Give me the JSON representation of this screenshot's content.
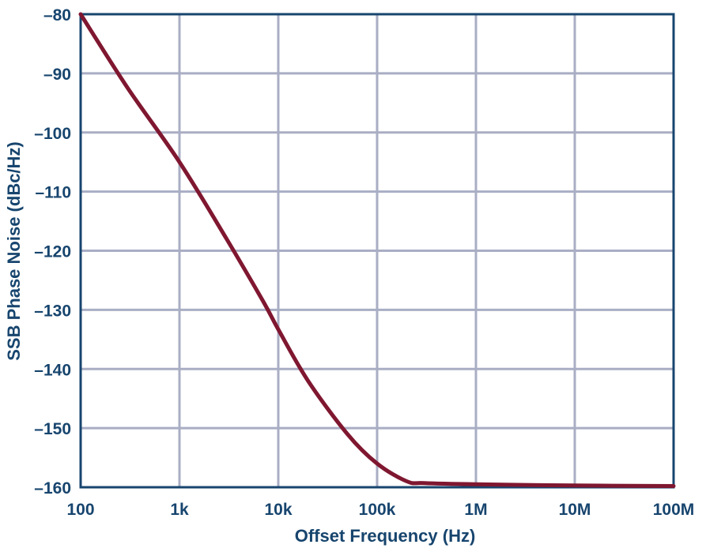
{
  "chart_data": {
    "type": "line",
    "title": "",
    "xlabel": "Offset Frequency (Hz)",
    "ylabel": "SSB Phase Noise (dBc/Hz)",
    "xscale": "log",
    "xlim": [
      100,
      100000000
    ],
    "ylim": [
      -160,
      -80
    ],
    "grid": true,
    "legend": null,
    "x_ticks": [
      "100",
      "1k",
      "10k",
      "100k",
      "1M",
      "10M",
      "100M"
    ],
    "y_ticks": [
      "-80",
      "-90",
      "-100",
      "-110",
      "-120",
      "-130",
      "-140",
      "-150",
      "-160"
    ],
    "series": [
      {
        "name": "SSB Phase Noise",
        "color": "#7f1730",
        "x": [
          100,
          300,
          1000,
          3000,
          7000,
          10000,
          20000,
          50000,
          100000,
          200000,
          300000,
          1000000,
          10000000,
          100000000
        ],
        "values": [
          -80,
          -92.5,
          -105,
          -118,
          -128.5,
          -133.3,
          -142,
          -151,
          -156,
          -159,
          -159.3,
          -159.5,
          -159.7,
          -159.8
        ]
      }
    ]
  },
  "colors": {
    "axis": "#17456e",
    "grid": "#a9aec4",
    "line": "#7f1730"
  }
}
